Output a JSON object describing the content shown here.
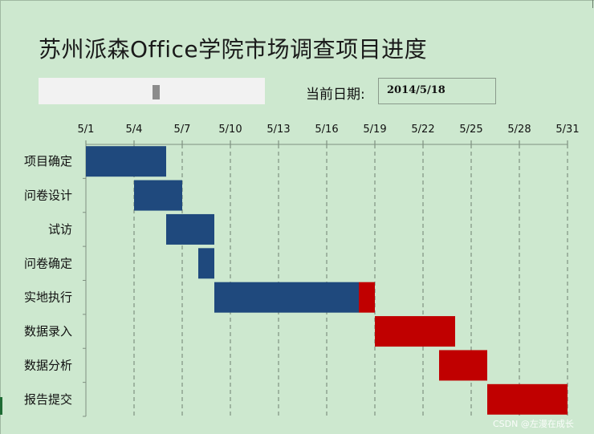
{
  "title": "苏州派森Office学院市场调查项目进度",
  "date_label": "当前日期:",
  "date_value": "2014/5/18",
  "scrollbar_position": 0.52,
  "watermark": "CSDN @左漫在成长",
  "colors": {
    "completed": "#1f497d",
    "remaining": "#c00000",
    "background": "#cde8cf",
    "grid": "#6f7f70"
  },
  "chart_data": {
    "type": "bar",
    "subtype": "gantt",
    "orientation": "horizontal",
    "x_ticks": [
      "5/1",
      "5/4",
      "5/7",
      "5/10",
      "5/13",
      "5/16",
      "5/19",
      "5/22",
      "5/25",
      "5/28",
      "5/31"
    ],
    "xlim": [
      "2014-05-01",
      "2014-05-31"
    ],
    "current_date": "2014-05-18",
    "categories": [
      "项目确定",
      "问卷设计",
      "试访",
      "问卷确定",
      "实地执行",
      "数据录入",
      "数据分析",
      "报告提交"
    ],
    "series": [
      {
        "values": [
          {
            "start": "2014-05-01",
            "end": "2014-05-06"
          },
          {
            "start": "2014-05-04",
            "end": "2014-05-07"
          },
          {
            "start": "2014-05-06",
            "end": "2014-05-09"
          },
          {
            "start": "2014-05-08",
            "end": "2014-05-09"
          },
          {
            "start": "2014-05-09",
            "end": "2014-05-18"
          },
          null,
          null,
          null
        ]
      },
      {
        "values": [
          null,
          null,
          null,
          null,
          {
            "start": "2014-05-18",
            "end": "2014-05-19"
          },
          {
            "start": "2014-05-19",
            "end": "2014-05-24"
          },
          {
            "start": "2014-05-23",
            "end": "2014-05-26"
          },
          {
            "start": "2014-05-26",
            "end": "2014-05-31"
          }
        ]
      }
    ],
    "grid": true,
    "legend": "none"
  }
}
